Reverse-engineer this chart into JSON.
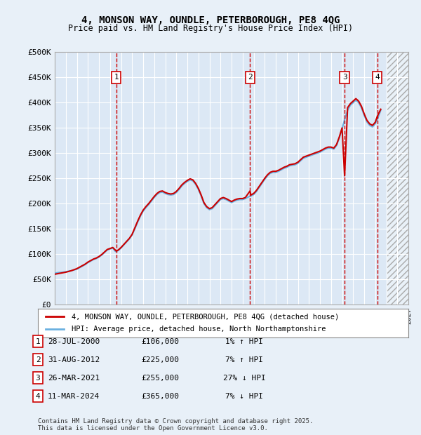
{
  "title_line1": "4, MONSON WAY, OUNDLE, PETERBOROUGH, PE8 4QG",
  "title_line2": "Price paid vs. HM Land Registry's House Price Index (HPI)",
  "ylabel": "",
  "xlabel": "",
  "ylim": [
    0,
    500000
  ],
  "yticks": [
    0,
    50000,
    100000,
    150000,
    200000,
    250000,
    300000,
    350000,
    400000,
    450000,
    500000
  ],
  "ytick_labels": [
    "£0",
    "£50K",
    "£100K",
    "£150K",
    "£200K",
    "£250K",
    "£300K",
    "£350K",
    "£400K",
    "£450K",
    "£500K"
  ],
  "xlim_start": 1995,
  "xlim_end": 2027,
  "background_color": "#e8f0f8",
  "plot_bg_color": "#dce8f5",
  "hpi_color": "#6ab0e0",
  "price_color": "#cc0000",
  "vline_color": "#cc0000",
  "legend_label_price": "4, MONSON WAY, OUNDLE, PETERBOROUGH, PE8 4QG (detached house)",
  "legend_label_hpi": "HPI: Average price, detached house, North Northamptonshire",
  "transactions": [
    {
      "num": 1,
      "date": "28-JUL-2000",
      "year": 2000.57,
      "price": 106000,
      "hpi_rel": "1% ↑ HPI"
    },
    {
      "num": 2,
      "date": "31-AUG-2012",
      "year": 2012.67,
      "price": 225000,
      "hpi_rel": "7% ↑ HPI"
    },
    {
      "num": 3,
      "date": "26-MAR-2021",
      "year": 2021.23,
      "price": 255000,
      "hpi_rel": "27% ↓ HPI"
    },
    {
      "num": 4,
      "date": "11-MAR-2024",
      "year": 2024.19,
      "price": 365000,
      "hpi_rel": "7% ↓ HPI"
    }
  ],
  "footer_text": "Contains HM Land Registry data © Crown copyright and database right 2025.\nThis data is licensed under the Open Government Licence v3.0.",
  "hpi_data_x": [
    1995.0,
    1995.25,
    1995.5,
    1995.75,
    1996.0,
    1996.25,
    1996.5,
    1996.75,
    1997.0,
    1997.25,
    1997.5,
    1997.75,
    1998.0,
    1998.25,
    1998.5,
    1998.75,
    1999.0,
    1999.25,
    1999.5,
    1999.75,
    2000.0,
    2000.25,
    2000.5,
    2000.75,
    2001.0,
    2001.25,
    2001.5,
    2001.75,
    2002.0,
    2002.25,
    2002.5,
    2002.75,
    2003.0,
    2003.25,
    2003.5,
    2003.75,
    2004.0,
    2004.25,
    2004.5,
    2004.75,
    2005.0,
    2005.25,
    2005.5,
    2005.75,
    2006.0,
    2006.25,
    2006.5,
    2006.75,
    2007.0,
    2007.25,
    2007.5,
    2007.75,
    2008.0,
    2008.25,
    2008.5,
    2008.75,
    2009.0,
    2009.25,
    2009.5,
    2009.75,
    2010.0,
    2010.25,
    2010.5,
    2010.75,
    2011.0,
    2011.25,
    2011.5,
    2011.75,
    2012.0,
    2012.25,
    2012.5,
    2012.75,
    2013.0,
    2013.25,
    2013.5,
    2013.75,
    2014.0,
    2014.25,
    2014.5,
    2014.75,
    2015.0,
    2015.25,
    2015.5,
    2015.75,
    2016.0,
    2016.25,
    2016.5,
    2016.75,
    2017.0,
    2017.25,
    2017.5,
    2017.75,
    2018.0,
    2018.25,
    2018.5,
    2018.75,
    2019.0,
    2019.25,
    2019.5,
    2019.75,
    2020.0,
    2020.25,
    2020.5,
    2020.75,
    2021.0,
    2021.25,
    2021.5,
    2021.75,
    2022.0,
    2022.25,
    2022.5,
    2022.75,
    2023.0,
    2023.25,
    2023.5,
    2023.75,
    2024.0,
    2024.25,
    2024.5
  ],
  "hpi_data_y": [
    62000,
    63000,
    63500,
    64000,
    65000,
    66000,
    67000,
    68500,
    70000,
    73000,
    76000,
    79000,
    83000,
    86000,
    89000,
    91000,
    94000,
    98000,
    103000,
    108000,
    110000,
    112000,
    105000,
    107000,
    112000,
    118000,
    124000,
    130000,
    138000,
    150000,
    163000,
    175000,
    185000,
    192000,
    198000,
    205000,
    212000,
    218000,
    222000,
    223000,
    220000,
    218000,
    217000,
    218000,
    222000,
    228000,
    235000,
    240000,
    244000,
    247000,
    245000,
    238000,
    228000,
    215000,
    200000,
    192000,
    188000,
    190000,
    196000,
    202000,
    208000,
    210000,
    208000,
    205000,
    202000,
    205000,
    207000,
    208000,
    208000,
    210000,
    213000,
    215000,
    218000,
    224000,
    232000,
    240000,
    248000,
    255000,
    260000,
    262000,
    262000,
    264000,
    267000,
    270000,
    272000,
    275000,
    276000,
    277000,
    280000,
    285000,
    290000,
    292000,
    294000,
    296000,
    298000,
    300000,
    302000,
    305000,
    308000,
    310000,
    310000,
    308000,
    315000,
    330000,
    348000,
    368000,
    385000,
    395000,
    400000,
    405000,
    400000,
    390000,
    375000,
    362000,
    355000,
    352000,
    358000,
    370000,
    385000
  ],
  "price_data_x": [
    1995.0,
    1995.25,
    1995.5,
    1995.75,
    1996.0,
    1996.25,
    1996.5,
    1996.75,
    1997.0,
    1997.25,
    1997.5,
    1997.75,
    1998.0,
    1998.25,
    1998.5,
    1998.75,
    1999.0,
    1999.25,
    1999.5,
    1999.75,
    2000.0,
    2000.25,
    2000.57,
    2000.75,
    2001.0,
    2001.25,
    2001.5,
    2001.75,
    2002.0,
    2002.25,
    2002.5,
    2002.75,
    2003.0,
    2003.25,
    2003.5,
    2003.75,
    2004.0,
    2004.25,
    2004.5,
    2004.75,
    2005.0,
    2005.25,
    2005.5,
    2005.75,
    2006.0,
    2006.25,
    2006.5,
    2006.75,
    2007.0,
    2007.25,
    2007.5,
    2007.75,
    2008.0,
    2008.25,
    2008.5,
    2008.75,
    2009.0,
    2009.25,
    2009.5,
    2009.75,
    2010.0,
    2010.25,
    2010.5,
    2010.75,
    2011.0,
    2011.25,
    2011.5,
    2011.75,
    2012.0,
    2012.25,
    2012.67,
    2012.75,
    2013.0,
    2013.25,
    2013.5,
    2013.75,
    2014.0,
    2014.25,
    2014.5,
    2014.75,
    2015.0,
    2015.25,
    2015.5,
    2015.75,
    2016.0,
    2016.25,
    2016.5,
    2016.75,
    2017.0,
    2017.25,
    2017.5,
    2017.75,
    2018.0,
    2018.25,
    2018.5,
    2018.75,
    2019.0,
    2019.25,
    2019.5,
    2019.75,
    2020.0,
    2020.25,
    2020.5,
    2020.75,
    2021.0,
    2021.23,
    2021.5,
    2021.75,
    2022.0,
    2022.25,
    2022.5,
    2022.75,
    2023.0,
    2023.25,
    2023.5,
    2023.75,
    2024.0,
    2024.19,
    2024.5
  ],
  "price_data_y": [
    60000,
    61000,
    62000,
    63000,
    64000,
    65500,
    67000,
    69000,
    71000,
    74000,
    77000,
    80000,
    84000,
    87000,
    90000,
    92000,
    95000,
    99000,
    104000,
    109000,
    111000,
    113000,
    106000,
    108000,
    113000,
    119000,
    125000,
    131000,
    139000,
    152000,
    165000,
    177000,
    187000,
    194000,
    200000,
    207000,
    214000,
    220000,
    224000,
    225000,
    222000,
    220000,
    219000,
    220000,
    224000,
    230000,
    237000,
    242000,
    246000,
    249000,
    247000,
    240000,
    230000,
    217000,
    202000,
    194000,
    190000,
    192000,
    198000,
    204000,
    210000,
    212000,
    210000,
    207000,
    204000,
    207000,
    209000,
    210000,
    210000,
    212000,
    225000,
    217000,
    220000,
    226000,
    234000,
    242000,
    250000,
    257000,
    262000,
    264000,
    264000,
    266000,
    269000,
    272000,
    274000,
    277000,
    278000,
    279000,
    282000,
    287000,
    292000,
    294000,
    296000,
    298000,
    300000,
    302000,
    304000,
    307000,
    310000,
    312000,
    312000,
    310000,
    317000,
    332000,
    350000,
    255000,
    390000,
    398000,
    403000,
    408000,
    403000,
    393000,
    378000,
    365000,
    358000,
    355000,
    361000,
    373000,
    387000
  ]
}
